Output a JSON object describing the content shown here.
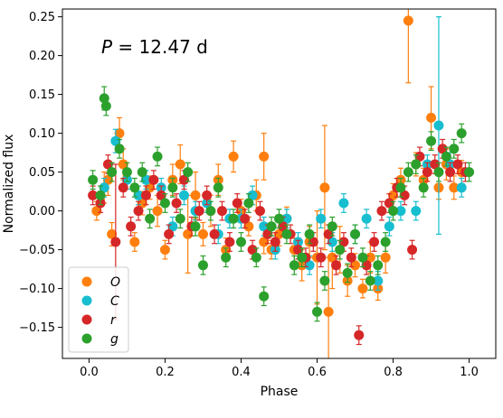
{
  "chart_data": {
    "type": "scatter",
    "xlabel": "Phase",
    "ylabel": "Normalized flux",
    "xlim": [
      -0.07,
      1.07
    ],
    "ylim": [
      -0.19,
      0.26
    ],
    "xticks": [
      0.0,
      0.2,
      0.4,
      0.6,
      0.8,
      1.0
    ],
    "xtick_labels": [
      "0.0",
      "0.2",
      "0.4",
      "0.6",
      "0.8",
      "1.0"
    ],
    "yticks": [
      -0.15,
      -0.1,
      -0.05,
      0.0,
      0.05,
      0.1,
      0.15,
      0.2,
      0.25
    ],
    "ytick_labels": [
      "−0.15",
      "−0.10",
      "−0.05",
      "0.00",
      "0.05",
      "0.10",
      "0.15",
      "0.20",
      "0.25"
    ],
    "grid": false,
    "legend_position": "lower-left",
    "annotation": {
      "prefix": "P",
      "suffix": " = 12.47 d"
    },
    "series": [
      {
        "name": "O",
        "color": "#ff7f0e",
        "points": [
          [
            0.02,
            0.0,
            0.012
          ],
          [
            0.04,
            0.03,
            0.02
          ],
          [
            0.06,
            -0.03,
            0.015
          ],
          [
            0.08,
            0.1,
            0.02
          ],
          [
            0.09,
            0.06,
            0.02
          ],
          [
            0.12,
            -0.04,
            0.012
          ],
          [
            0.14,
            0.01,
            0.015
          ],
          [
            0.16,
            0.03,
            0.015
          ],
          [
            0.18,
            0.0,
            0.02
          ],
          [
            0.2,
            -0.05,
            0.012
          ],
          [
            0.22,
            0.04,
            0.02
          ],
          [
            0.24,
            0.06,
            0.025
          ],
          [
            0.26,
            -0.03,
            0.05
          ],
          [
            0.28,
            0.02,
            0.03
          ],
          [
            0.3,
            -0.03,
            0.015
          ],
          [
            0.32,
            0.0,
            0.02
          ],
          [
            0.34,
            0.04,
            0.02
          ],
          [
            0.36,
            -0.05,
            0.015
          ],
          [
            0.38,
            0.07,
            0.02
          ],
          [
            0.4,
            0.0,
            0.015
          ],
          [
            0.42,
            -0.02,
            0.012
          ],
          [
            0.44,
            0.02,
            0.02
          ],
          [
            0.46,
            0.07,
            0.03
          ],
          [
            0.48,
            -0.05,
            0.012
          ],
          [
            0.5,
            -0.03,
            0.015
          ],
          [
            0.52,
            -0.01,
            0.015
          ],
          [
            0.54,
            -0.05,
            0.015
          ],
          [
            0.56,
            -0.07,
            0.02
          ],
          [
            0.58,
            -0.04,
            0.02
          ],
          [
            0.6,
            -0.06,
            0.06
          ],
          [
            0.62,
            0.03,
            0.08
          ],
          [
            0.63,
            -0.13,
            0.07
          ],
          [
            0.64,
            -0.06,
            0.04
          ],
          [
            0.66,
            -0.05,
            0.03
          ],
          [
            0.68,
            -0.09,
            0.02
          ],
          [
            0.7,
            -0.07,
            0.015
          ],
          [
            0.72,
            -0.1,
            0.012
          ],
          [
            0.74,
            -0.06,
            0.02
          ],
          [
            0.76,
            -0.1,
            0.015
          ],
          [
            0.78,
            -0.06,
            0.02
          ],
          [
            0.8,
            0.02,
            0.015
          ],
          [
            0.82,
            0.04,
            0.015
          ],
          [
            0.84,
            0.245,
            0.08
          ],
          [
            0.86,
            0.06,
            0.015
          ],
          [
            0.88,
            0.04,
            0.015
          ],
          [
            0.9,
            0.12,
            0.04
          ],
          [
            0.92,
            0.03,
            0.015
          ],
          [
            0.94,
            0.06,
            0.02
          ],
          [
            0.96,
            0.03,
            0.015
          ],
          [
            0.98,
            0.05,
            0.015
          ],
          [
            0.05,
            0.04,
            0.02
          ],
          [
            0.46,
            -0.04,
            0.015
          ]
        ]
      },
      {
        "name": "C",
        "color": "#17becf",
        "points": [
          [
            0.04,
            0.03,
            0.012
          ],
          [
            0.07,
            0.09,
            0.015
          ],
          [
            0.1,
            0.04,
            0.012
          ],
          [
            0.13,
            0.02,
            0.012
          ],
          [
            0.15,
            0.04,
            0.012
          ],
          [
            0.19,
            0.03,
            0.012
          ],
          [
            0.22,
            -0.02,
            0.012
          ],
          [
            0.25,
            0.02,
            0.012
          ],
          [
            0.28,
            0.0,
            0.012
          ],
          [
            0.31,
            0.01,
            0.012
          ],
          [
            0.34,
            -0.03,
            0.012
          ],
          [
            0.37,
            -0.01,
            0.012
          ],
          [
            0.4,
            -0.01,
            0.012
          ],
          [
            0.43,
            0.02,
            0.012
          ],
          [
            0.46,
            -0.02,
            0.012
          ],
          [
            0.49,
            -0.05,
            0.012
          ],
          [
            0.52,
            -0.01,
            0.012
          ],
          [
            0.55,
            -0.04,
            0.012
          ],
          [
            0.58,
            -0.07,
            0.012
          ],
          [
            0.61,
            -0.01,
            0.012
          ],
          [
            0.64,
            -0.04,
            0.012
          ],
          [
            0.67,
            0.01,
            0.012
          ],
          [
            0.7,
            -0.03,
            0.012
          ],
          [
            0.73,
            -0.01,
            0.012
          ],
          [
            0.76,
            -0.09,
            0.012
          ],
          [
            0.79,
            -0.02,
            0.012
          ],
          [
            0.82,
            0.0,
            0.012
          ],
          [
            0.86,
            0.0,
            0.012
          ],
          [
            0.89,
            0.06,
            0.012
          ],
          [
            0.92,
            0.11,
            0.14
          ],
          [
            0.95,
            0.06,
            0.015
          ],
          [
            0.98,
            0.03,
            0.012
          ]
        ]
      },
      {
        "name": "r",
        "color": "#d62728",
        "points": [
          [
            0.01,
            0.02,
            0.012
          ],
          [
            0.03,
            0.01,
            0.012
          ],
          [
            0.05,
            0.06,
            0.012
          ],
          [
            0.07,
            -0.04,
            0.1
          ],
          [
            0.09,
            0.03,
            0.012
          ],
          [
            0.11,
            -0.02,
            0.012
          ],
          [
            0.13,
            0.0,
            0.012
          ],
          [
            0.15,
            0.02,
            0.012
          ],
          [
            0.17,
            0.04,
            0.012
          ],
          [
            0.19,
            0.02,
            0.012
          ],
          [
            0.21,
            -0.03,
            0.012
          ],
          [
            0.23,
            0.01,
            0.012
          ],
          [
            0.25,
            0.04,
            0.012
          ],
          [
            0.27,
            -0.02,
            0.012
          ],
          [
            0.29,
            0.0,
            0.012
          ],
          [
            0.31,
            0.02,
            0.012
          ],
          [
            0.33,
            -0.03,
            0.012
          ],
          [
            0.35,
            0.0,
            0.012
          ],
          [
            0.37,
            -0.04,
            0.012
          ],
          [
            0.39,
            0.01,
            0.012
          ],
          [
            0.41,
            -0.01,
            0.012
          ],
          [
            0.43,
            -0.05,
            0.012
          ],
          [
            0.45,
            0.0,
            0.012
          ],
          [
            0.47,
            -0.03,
            0.012
          ],
          [
            0.49,
            -0.04,
            0.012
          ],
          [
            0.51,
            -0.02,
            0.012
          ],
          [
            0.53,
            -0.03,
            0.012
          ],
          [
            0.55,
            -0.05,
            0.012
          ],
          [
            0.57,
            -0.06,
            0.012
          ],
          [
            0.59,
            -0.04,
            0.012
          ],
          [
            0.61,
            -0.06,
            0.012
          ],
          [
            0.63,
            -0.03,
            0.012
          ],
          [
            0.65,
            -0.07,
            0.012
          ],
          [
            0.67,
            -0.04,
            0.012
          ],
          [
            0.69,
            -0.06,
            0.012
          ],
          [
            0.71,
            -0.16,
            0.012
          ],
          [
            0.73,
            -0.07,
            0.012
          ],
          [
            0.75,
            -0.04,
            0.012
          ],
          [
            0.77,
            0.0,
            0.012
          ],
          [
            0.79,
            0.01,
            0.012
          ],
          [
            0.81,
            0.03,
            0.012
          ],
          [
            0.83,
            0.02,
            0.012
          ],
          [
            0.85,
            -0.05,
            0.012
          ],
          [
            0.87,
            0.07,
            0.012
          ],
          [
            0.89,
            0.05,
            0.012
          ],
          [
            0.91,
            0.06,
            0.012
          ],
          [
            0.93,
            0.08,
            0.012
          ],
          [
            0.95,
            0.05,
            0.012
          ],
          [
            0.97,
            0.06,
            0.012
          ],
          [
            0.99,
            0.05,
            0.012
          ]
        ]
      },
      {
        "name": "g",
        "color": "#2ca02c",
        "points": [
          [
            0.01,
            0.04,
            0.012
          ],
          [
            0.03,
            0.02,
            0.012
          ],
          [
            0.04,
            0.145,
            0.015
          ],
          [
            0.06,
            0.05,
            0.012
          ],
          [
            0.08,
            0.08,
            0.012
          ],
          [
            0.1,
            0.05,
            0.012
          ],
          [
            0.12,
            0.03,
            0.012
          ],
          [
            0.14,
            0.05,
            0.012
          ],
          [
            0.16,
            -0.01,
            0.012
          ],
          [
            0.18,
            0.07,
            0.012
          ],
          [
            0.2,
            0.01,
            0.012
          ],
          [
            0.22,
            0.03,
            0.012
          ],
          [
            0.24,
            -0.01,
            0.012
          ],
          [
            0.26,
            0.05,
            0.012
          ],
          [
            0.28,
            -0.02,
            0.012
          ],
          [
            0.3,
            -0.07,
            0.012
          ],
          [
            0.32,
            0.0,
            0.012
          ],
          [
            0.34,
            0.03,
            0.012
          ],
          [
            0.36,
            -0.06,
            0.012
          ],
          [
            0.38,
            -0.01,
            0.012
          ],
          [
            0.4,
            -0.04,
            0.012
          ],
          [
            0.42,
            0.01,
            0.012
          ],
          [
            0.44,
            -0.06,
            0.012
          ],
          [
            0.46,
            -0.11,
            0.012
          ],
          [
            0.48,
            -0.02,
            0.012
          ],
          [
            0.5,
            -0.01,
            0.012
          ],
          [
            0.52,
            -0.03,
            0.012
          ],
          [
            0.54,
            -0.07,
            0.012
          ],
          [
            0.56,
            -0.06,
            0.012
          ],
          [
            0.58,
            -0.03,
            0.012
          ],
          [
            0.6,
            -0.13,
            0.012
          ],
          [
            0.62,
            -0.09,
            0.012
          ],
          [
            0.64,
            -0.02,
            0.012
          ],
          [
            0.66,
            -0.05,
            0.012
          ],
          [
            0.68,
            -0.08,
            0.012
          ],
          [
            0.7,
            -0.03,
            0.012
          ],
          [
            0.72,
            -0.06,
            0.012
          ],
          [
            0.74,
            -0.09,
            0.012
          ],
          [
            0.76,
            -0.07,
            0.012
          ],
          [
            0.78,
            -0.04,
            0.012
          ],
          [
            0.8,
            0.0,
            0.012
          ],
          [
            0.82,
            0.03,
            0.012
          ],
          [
            0.84,
            0.05,
            0.012
          ],
          [
            0.86,
            0.06,
            0.012
          ],
          [
            0.88,
            0.03,
            0.012
          ],
          [
            0.9,
            0.09,
            0.012
          ],
          [
            0.92,
            0.05,
            0.012
          ],
          [
            0.94,
            0.07,
            0.012
          ],
          [
            0.96,
            0.08,
            0.012
          ],
          [
            0.98,
            0.1,
            0.012
          ],
          [
            1.0,
            0.05,
            0.012
          ],
          [
            0.045,
            0.135,
            0.012
          ]
        ]
      }
    ]
  }
}
